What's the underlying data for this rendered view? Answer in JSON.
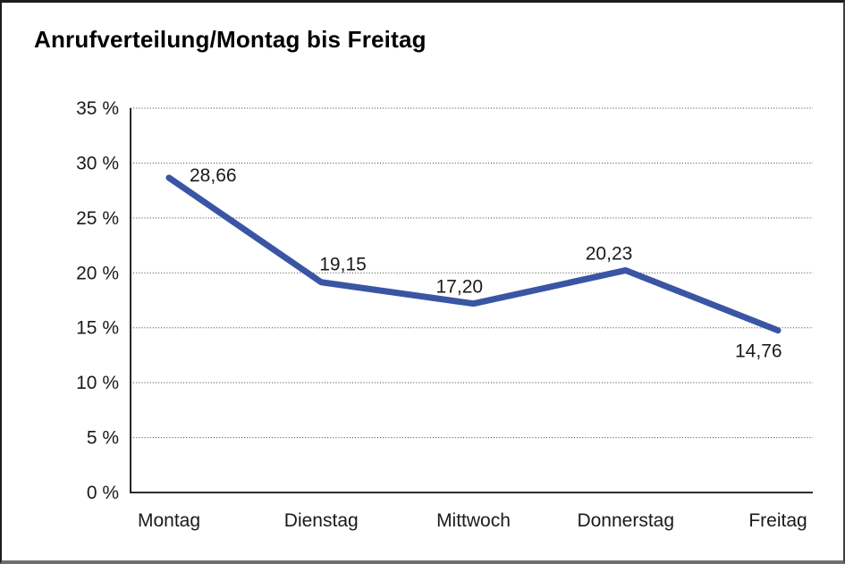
{
  "chart_data": {
    "type": "line",
    "title": "Anrufverteilung/Montag bis Freitag",
    "categories": [
      "Montag",
      "Dienstag",
      "Mittwoch",
      "Donnerstag",
      "Freitag"
    ],
    "values": [
      28.66,
      19.15,
      17.2,
      20.23,
      14.76
    ],
    "value_labels": [
      "28,66",
      "19,15",
      "17,20",
      "20,23",
      "14,76"
    ],
    "xlabel": "",
    "ylabel": "",
    "ylim": [
      0,
      35
    ],
    "y_ticks": [
      0,
      5,
      10,
      15,
      20,
      25,
      30,
      35
    ],
    "y_tick_labels": [
      "0 %",
      "5 %",
      "10 %",
      "15 %",
      "20 %",
      "25 %",
      "30 %",
      "35 %"
    ],
    "grid": "horizontal dotted",
    "legend": "none",
    "line_color": "#3A55A3",
    "axis_color": "#111111",
    "grid_color": "#3c3c3c",
    "text_color": "#1a1a1a"
  }
}
